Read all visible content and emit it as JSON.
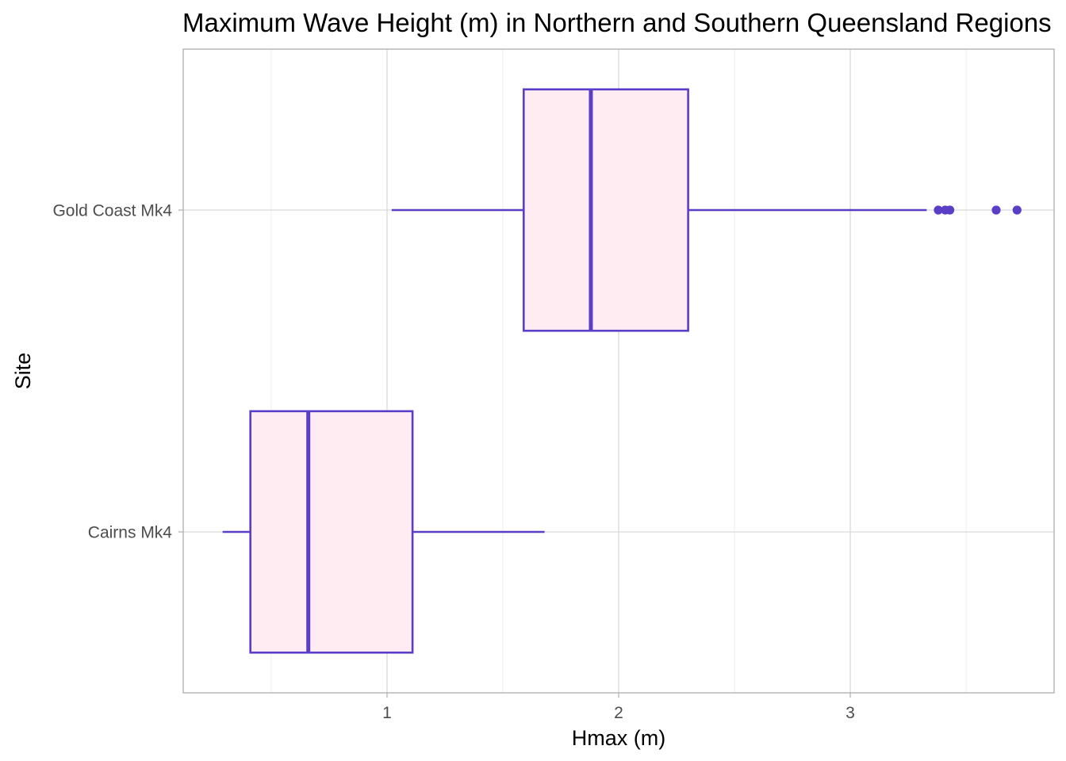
{
  "chart_data": {
    "type": "boxplot",
    "orientation": "horizontal",
    "title": "Maximum Wave Height (m) in Northern and Southern Queensland Regions",
    "xlabel": "Hmax (m)",
    "ylabel": "Site",
    "xlim": [
      0.12,
      3.88
    ],
    "x_ticks": [
      1,
      2,
      3
    ],
    "x_tick_labels": [
      "1",
      "2",
      "3"
    ],
    "categories": [
      "Cairns Mk4",
      "Gold Coast Mk4"
    ],
    "boxes": [
      {
        "name": "Cairns Mk4",
        "whisker_low": 0.29,
        "q1": 0.41,
        "median": 0.66,
        "q3": 1.11,
        "whisker_high": 1.68,
        "outliers": []
      },
      {
        "name": "Gold Coast Mk4",
        "whisker_low": 1.02,
        "q1": 1.59,
        "median": 1.88,
        "q3": 2.3,
        "whisker_high": 3.33,
        "outliers": [
          3.38,
          3.41,
          3.43,
          3.63,
          3.72
        ]
      }
    ],
    "grid": true,
    "legend": "none",
    "colors": {
      "box_fill": "#ffecf3",
      "box_stroke": "#5b3ec8",
      "grid_major": "#d9d9d9",
      "grid_minor": "#ececec",
      "panel_border": "#b3b3b3"
    }
  }
}
